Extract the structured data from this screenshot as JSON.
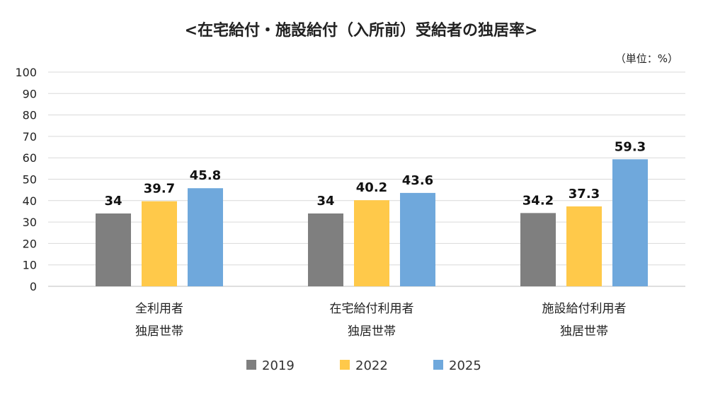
{
  "chart_data": {
    "type": "bar",
    "title": "<在宅給付・施設給付（入所前）受給者の独居率>",
    "unit_note": "（単位：%）",
    "categories": [
      [
        "全利用者",
        "独居世帯"
      ],
      [
        "在宅給付利用者",
        "独居世帯"
      ],
      [
        "施設給付利用者",
        "独居世帯"
      ]
    ],
    "series": [
      {
        "name": "2019",
        "color": "#7f7f7f",
        "values": [
          34,
          34,
          34.2
        ],
        "labels": [
          "34",
          "34",
          "34.2"
        ]
      },
      {
        "name": "2022",
        "color": "#ffc94a",
        "values": [
          39.7,
          40.2,
          37.3
        ],
        "labels": [
          "39.7",
          "40.2",
          "37.3"
        ]
      },
      {
        "name": "2025",
        "color": "#6fa8dc",
        "values": [
          45.8,
          43.6,
          59.3
        ],
        "labels": [
          "45.8",
          "43.6",
          "59.3"
        ]
      }
    ],
    "ylim": [
      0,
      100
    ],
    "yticks": [
      "0",
      "10",
      "20",
      "30",
      "40",
      "50",
      "60",
      "70",
      "80",
      "90",
      "100"
    ],
    "grid": true,
    "legend_position": "bottom"
  }
}
